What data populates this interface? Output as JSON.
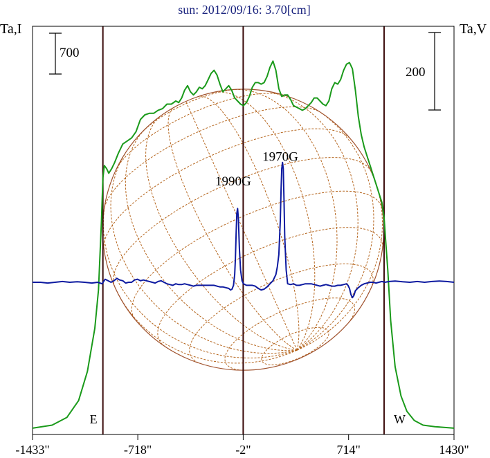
{
  "chart_data": {
    "type": "line",
    "title": "sun: 2012/09/16: 3.70[cm]",
    "left_axis_label": "Ta,I",
    "right_axis_label": "Ta,V",
    "scale_bars": {
      "left": "700",
      "right": "200"
    },
    "x_ticks": [
      {
        "value": -1433,
        "label": "-1433\""
      },
      {
        "value": -718,
        "label": "-718\""
      },
      {
        "value": -2,
        "label": "-2\""
      },
      {
        "value": 714,
        "label": "714\""
      },
      {
        "value": 1430,
        "label": "1430\""
      }
    ],
    "xlim": [
      -1433,
      1430
    ],
    "limb_markers": [
      {
        "value": -955,
        "label": "E"
      },
      {
        "value": -2,
        "label": ""
      },
      {
        "value": 955,
        "label": "W"
      }
    ],
    "annotations": [
      {
        "text": "1990G",
        "x": -70,
        "y": 0.63
      },
      {
        "text": "1970G",
        "x": 250,
        "y": 0.79
      }
    ],
    "disk": {
      "center_x": -2,
      "radius_arcsec": 955,
      "colors": {
        "limb": "#a0522d",
        "grid": "#b5651d"
      }
    },
    "series": [
      {
        "name": "I",
        "color": "#1a9a1a",
        "x": [
          -1433,
          -1300,
          -1200,
          -1120,
          -1060,
          -1010,
          -985,
          -965,
          -955,
          -945,
          -930,
          -915,
          -895,
          -875,
          -850,
          -820,
          -790,
          -760,
          -730,
          -700,
          -670,
          -640,
          -610,
          -580,
          -550,
          -520,
          -490,
          -460,
          -440,
          -420,
          -400,
          -380,
          -360,
          -340,
          -320,
          -300,
          -280,
          -260,
          -240,
          -220,
          -200,
          -180,
          -160,
          -140,
          -120,
          -100,
          -80,
          -60,
          -40,
          -20,
          0,
          20,
          40,
          60,
          80,
          100,
          120,
          140,
          160,
          180,
          200,
          220,
          240,
          260,
          280,
          300,
          320,
          340,
          360,
          380,
          400,
          420,
          440,
          460,
          480,
          500,
          520,
          540,
          560,
          580,
          600,
          620,
          640,
          660,
          680,
          700,
          720,
          740,
          760,
          780,
          800,
          820,
          840,
          860,
          880,
          900,
          920,
          940,
          955,
          965,
          980,
          1000,
          1030,
          1070,
          1110,
          1160,
          1220,
          1300,
          1430
        ],
        "y": [
          -0.95,
          -0.93,
          -0.88,
          -0.77,
          -0.58,
          -0.3,
          -0.05,
          0.4,
          0.68,
          0.76,
          0.74,
          0.71,
          0.74,
          0.78,
          0.84,
          0.9,
          0.92,
          0.94,
          0.98,
          1.06,
          1.09,
          1.1,
          1.1,
          1.12,
          1.13,
          1.16,
          1.16,
          1.18,
          1.17,
          1.2,
          1.25,
          1.28,
          1.24,
          1.22,
          1.24,
          1.27,
          1.26,
          1.28,
          1.32,
          1.36,
          1.38,
          1.35,
          1.29,
          1.24,
          1.26,
          1.28,
          1.25,
          1.2,
          1.18,
          1.16,
          1.15,
          1.17,
          1.21,
          1.27,
          1.3,
          1.3,
          1.29,
          1.3,
          1.34,
          1.4,
          1.44,
          1.38,
          1.26,
          1.21,
          1.22,
          1.22,
          1.19,
          1.15,
          1.14,
          1.13,
          1.12,
          1.13,
          1.15,
          1.17,
          1.2,
          1.2,
          1.18,
          1.16,
          1.15,
          1.18,
          1.26,
          1.3,
          1.29,
          1.32,
          1.38,
          1.42,
          1.43,
          1.39,
          1.25,
          1.08,
          0.96,
          0.88,
          0.82,
          0.76,
          0.7,
          0.64,
          0.58,
          0.52,
          0.42,
          0.28,
          0.08,
          -0.25,
          -0.55,
          -0.74,
          -0.84,
          -0.9,
          -0.93,
          -0.94,
          -0.95
        ]
      },
      {
        "name": "V",
        "color": "#0d1aa0",
        "x": [
          -1433,
          -1380,
          -1330,
          -1280,
          -1230,
          -1180,
          -1130,
          -1080,
          -1030,
          -990,
          -960,
          -940,
          -920,
          -900,
          -880,
          -860,
          -840,
          -820,
          -800,
          -780,
          -760,
          -740,
          -720,
          -700,
          -680,
          -660,
          -640,
          -620,
          -600,
          -580,
          -560,
          -540,
          -520,
          -500,
          -480,
          -460,
          -440,
          -420,
          -400,
          -380,
          -360,
          -340,
          -320,
          -300,
          -280,
          -260,
          -240,
          -220,
          -200,
          -180,
          -160,
          -140,
          -120,
          -100,
          -88,
          -78,
          -68,
          -60,
          -55,
          -50,
          -45,
          -40,
          -35,
          -28,
          -20,
          -10,
          0,
          20,
          40,
          60,
          80,
          100,
          120,
          140,
          160,
          180,
          200,
          210,
          220,
          230,
          240,
          250,
          255,
          260,
          265,
          270,
          275,
          280,
          290,
          300,
          320,
          340,
          360,
          380,
          400,
          420,
          440,
          460,
          480,
          500,
          520,
          540,
          560,
          580,
          600,
          620,
          640,
          660,
          680,
          700,
          710,
          720,
          730,
          740,
          750,
          760,
          780,
          800,
          820,
          840,
          860,
          880,
          900,
          920,
          940,
          960,
          990,
          1030,
          1080,
          1130,
          1180,
          1230,
          1280,
          1330,
          1380,
          1430
        ],
        "y": [
          0,
          0,
          -0.005,
          0,
          0.005,
          0,
          0.003,
          0,
          -0.005,
          0,
          -0.01,
          0.02,
          0.01,
          0,
          0.01,
          0.025,
          0.015,
          0.01,
          -0.005,
          0,
          0,
          0.015,
          0.02,
          0.01,
          0.015,
          0.01,
          0.005,
          0,
          -0.005,
          0.005,
          0.01,
          0,
          -0.01,
          -0.015,
          -0.02,
          -0.01,
          -0.015,
          -0.015,
          -0.01,
          -0.015,
          -0.02,
          -0.025,
          -0.02,
          -0.02,
          -0.02,
          -0.02,
          -0.02,
          -0.02,
          -0.02,
          -0.025,
          -0.03,
          -0.03,
          -0.035,
          -0.04,
          -0.05,
          -0.045,
          -0.02,
          0.05,
          0.15,
          0.32,
          0.45,
          0.48,
          0.42,
          0.22,
          0.08,
          0.01,
          -0.01,
          -0.02,
          -0.02,
          -0.02,
          -0.025,
          -0.04,
          -0.05,
          -0.045,
          -0.03,
          -0.01,
          0.01,
          0.03,
          0.05,
          0.1,
          0.18,
          0.4,
          0.6,
          0.74,
          0.78,
          0.74,
          0.55,
          0.3,
          0.08,
          -0.01,
          -0.015,
          -0.01,
          -0.02,
          -0.02,
          -0.015,
          -0.01,
          -0.01,
          -0.01,
          -0.015,
          -0.02,
          -0.025,
          -0.02,
          -0.015,
          -0.02,
          -0.025,
          -0.025,
          -0.02,
          -0.02,
          -0.015,
          -0.01,
          -0.02,
          -0.04,
          -0.08,
          -0.1,
          -0.085,
          -0.055,
          -0.035,
          -0.02,
          -0.01,
          -0.005,
          0,
          0,
          -0.005,
          0,
          0.005,
          0,
          0.005,
          0.008,
          0.003,
          0,
          0.005,
          0,
          0.005,
          0.008,
          0.005,
          0
        ]
      }
    ]
  }
}
